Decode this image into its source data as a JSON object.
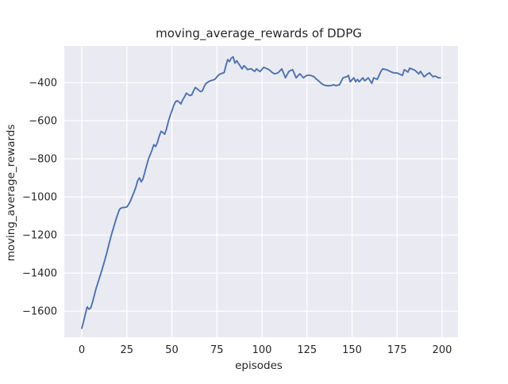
{
  "chart_data": {
    "type": "line",
    "title": "moving_average_rewards of DDPG",
    "xlabel": "episodes",
    "ylabel": "moving_average_rewards",
    "x_ticks": [
      0,
      25,
      50,
      75,
      100,
      125,
      150,
      175,
      200
    ],
    "y_ticks": [
      -400,
      -600,
      -800,
      -1000,
      -1200,
      -1400,
      -1600
    ],
    "xlim": [
      -9.7,
      208.8
    ],
    "ylim": [
      -1737,
      -208
    ],
    "grid": true,
    "legend": false,
    "colors": {
      "line": "#4c72b0",
      "plot_background": "#eaeaf2",
      "grid": "#ffffff",
      "figure_background": "#ffffff",
      "text": "#262626"
    },
    "series": [
      {
        "name": "moving_average_rewards",
        "x_start": 0,
        "x_step": 1,
        "values": [
          -1690,
          -1655,
          -1615,
          -1578,
          -1590,
          -1583,
          -1552,
          -1515,
          -1480,
          -1450,
          -1420,
          -1390,
          -1358,
          -1325,
          -1290,
          -1252,
          -1215,
          -1182,
          -1150,
          -1118,
          -1090,
          -1065,
          -1058,
          -1056,
          -1055,
          -1053,
          -1040,
          -1022,
          -998,
          -975,
          -950,
          -916,
          -900,
          -921,
          -905,
          -870,
          -835,
          -802,
          -778,
          -754,
          -726,
          -736,
          -714,
          -681,
          -656,
          -662,
          -671,
          -644,
          -606,
          -575,
          -549,
          -521,
          -501,
          -495,
          -502,
          -512,
          -491,
          -475,
          -456,
          -462,
          -468,
          -465,
          -444,
          -426,
          -432,
          -441,
          -447,
          -443,
          -419,
          -404,
          -398,
          -392,
          -389,
          -386,
          -382,
          -370,
          -360,
          -354,
          -351,
          -348,
          -311,
          -279,
          -290,
          -271,
          -265,
          -298,
          -285,
          -300,
          -314,
          -328,
          -311,
          -320,
          -332,
          -329,
          -327,
          -335,
          -341,
          -328,
          -336,
          -342,
          -330,
          -320,
          -324,
          -328,
          -333,
          -341,
          -349,
          -354,
          -352,
          -348,
          -338,
          -328,
          -350,
          -375,
          -358,
          -341,
          -336,
          -332,
          -353,
          -375,
          -364,
          -354,
          -364,
          -375,
          -368,
          -362,
          -361,
          -362,
          -366,
          -370,
          -380,
          -388,
          -396,
          -404,
          -411,
          -414,
          -416,
          -417,
          -416,
          -414,
          -412,
          -416,
          -414,
          -412,
          -393,
          -375,
          -372,
          -370,
          -362,
          -396,
          -385,
          -375,
          -396,
          -383,
          -396,
          -385,
          -375,
          -391,
          -383,
          -375,
          -390,
          -404,
          -375,
          -379,
          -383,
          -362,
          -341,
          -328,
          -330,
          -332,
          -336,
          -341,
          -345,
          -349,
          -349,
          -350,
          -354,
          -358,
          -362,
          -332,
          -338,
          -345,
          -324,
          -328,
          -332,
          -336,
          -345,
          -354,
          -341,
          -355,
          -370,
          -362,
          -354,
          -349,
          -360,
          -370,
          -366,
          -370,
          -375,
          -375
        ]
      }
    ]
  }
}
